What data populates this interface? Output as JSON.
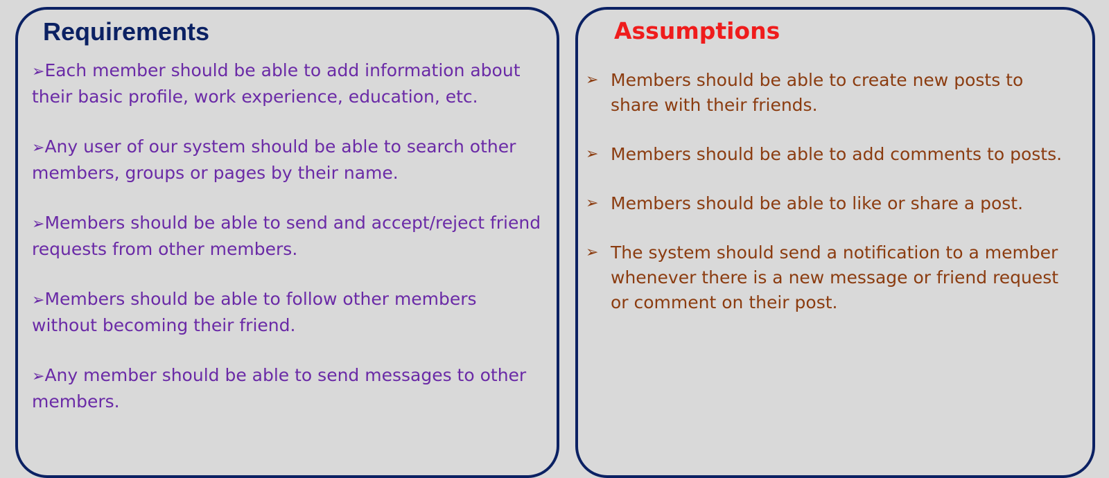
{
  "requirements": {
    "title": "Requirements",
    "bullet": "➢",
    "items": [
      "Each member should be able to add information about their basic profile, work experience, education, etc.",
      "Any user of our system should be able to search other members, groups or pages by their name.",
      "Members should be able to send and accept/reject friend requests from other members.",
      "Members should be able to follow other members without becoming their friend.",
      "Any member should be able to send messages to other members."
    ]
  },
  "assumptions": {
    "title": "Assumptions",
    "bullet": "➢",
    "items": [
      "Members should be able to create new posts to share with their friends.",
      "Members should be able to add comments to posts.",
      "Members should be able to like or share a post.",
      "The system should send a notification to a member whenever there is a new message or friend request or comment on their post."
    ]
  },
  "colors": {
    "background": "#d9d9d9",
    "border": "#0b2163",
    "requirements_title": "#0b2163",
    "requirements_text": "#6a2aa6",
    "assumptions_title": "#ef1c1c",
    "assumptions_text": "#8b3c10"
  }
}
